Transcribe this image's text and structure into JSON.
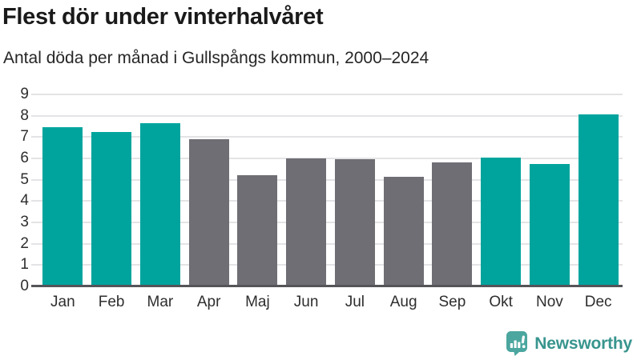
{
  "header": {
    "title": "Flest dör under vinterhalvåret",
    "subtitle": "Antal döda per månad i Gullspångs kommun, 2000–2024"
  },
  "chart_data": {
    "type": "bar",
    "title": "Flest dör under vinterhalvåret",
    "subtitle": "Antal döda per månad i Gullspångs kommun, 2000–2024",
    "categories": [
      "Jan",
      "Feb",
      "Mar",
      "Apr",
      "Maj",
      "Jun",
      "Jul",
      "Aug",
      "Sep",
      "Okt",
      "Nov",
      "Dec"
    ],
    "values": [
      7.45,
      7.25,
      7.65,
      6.9,
      5.2,
      6.0,
      5.95,
      5.15,
      5.8,
      6.05,
      5.75,
      8.05
    ],
    "bar_colors": [
      "teal",
      "teal",
      "teal",
      "gray",
      "gray",
      "gray",
      "gray",
      "gray",
      "gray",
      "teal",
      "teal",
      "teal"
    ],
    "xlabel": "",
    "ylabel": "",
    "ylim": [
      0,
      9
    ],
    "y_ticks": [
      0,
      1,
      2,
      3,
      4,
      5,
      6,
      7,
      8,
      9
    ],
    "grid": "horizontal",
    "legend": "none"
  },
  "footer": {
    "brand": "Newsworthy",
    "logo_icon": "bar-chart-speech-bubble-icon"
  },
  "colors": {
    "accent_teal": "#00a49d",
    "bar_gray": "#6f6e74",
    "gridline": "#e4e4e6",
    "axis_line": "#545459",
    "logo_teal": "#4ba69f",
    "brand_text": "#38958e"
  }
}
